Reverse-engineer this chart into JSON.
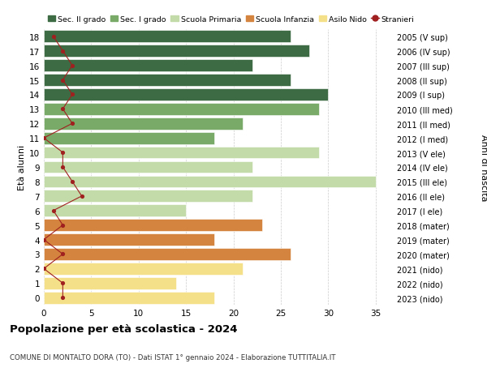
{
  "ages": [
    18,
    17,
    16,
    15,
    14,
    13,
    12,
    11,
    10,
    9,
    8,
    7,
    6,
    5,
    4,
    3,
    2,
    1,
    0
  ],
  "years": [
    "2005 (V sup)",
    "2006 (IV sup)",
    "2007 (III sup)",
    "2008 (II sup)",
    "2009 (I sup)",
    "2010 (III med)",
    "2011 (II med)",
    "2012 (I med)",
    "2013 (V ele)",
    "2014 (IV ele)",
    "2015 (III ele)",
    "2016 (II ele)",
    "2017 (I ele)",
    "2018 (mater)",
    "2019 (mater)",
    "2020 (mater)",
    "2021 (nido)",
    "2022 (nido)",
    "2023 (nido)"
  ],
  "bar_values": [
    26,
    28,
    22,
    26,
    30,
    29,
    21,
    18,
    29,
    22,
    35,
    22,
    15,
    23,
    18,
    26,
    21,
    14,
    18
  ],
  "bar_colors": [
    "#3d6b43",
    "#3d6b43",
    "#3d6b43",
    "#3d6b43",
    "#3d6b43",
    "#7aaa68",
    "#7aaa68",
    "#7aaa68",
    "#c2dba8",
    "#c2dba8",
    "#c2dba8",
    "#c2dba8",
    "#c2dba8",
    "#d4843e",
    "#d4843e",
    "#d4843e",
    "#f5e08a",
    "#f5e08a",
    "#f5e08a"
  ],
  "stranieri_x": [
    1,
    2,
    3,
    2,
    3,
    2,
    3,
    0,
    2,
    2,
    3,
    4,
    1,
    2,
    0,
    2,
    0,
    2,
    2
  ],
  "legend_labels": [
    "Sec. II grado",
    "Sec. I grado",
    "Scuola Primaria",
    "Scuola Infanzia",
    "Asilo Nido",
    "Stranieri"
  ],
  "legend_colors": [
    "#3d6b43",
    "#7aaa68",
    "#c2dba8",
    "#d4843e",
    "#f5e08a",
    "#a02020"
  ],
  "title": "Popolazione per età scolastica - 2024",
  "subtitle": "COMUNE DI MONTALTO DORA (TO) - Dati ISTAT 1° gennaio 2024 - Elaborazione TUTTITALIA.IT",
  "ylabel_left": "Età alunni",
  "ylabel_right": "Anni di nascita",
  "xlim": [
    0,
    37
  ],
  "background_color": "#ffffff",
  "grid_color": "#cccccc"
}
